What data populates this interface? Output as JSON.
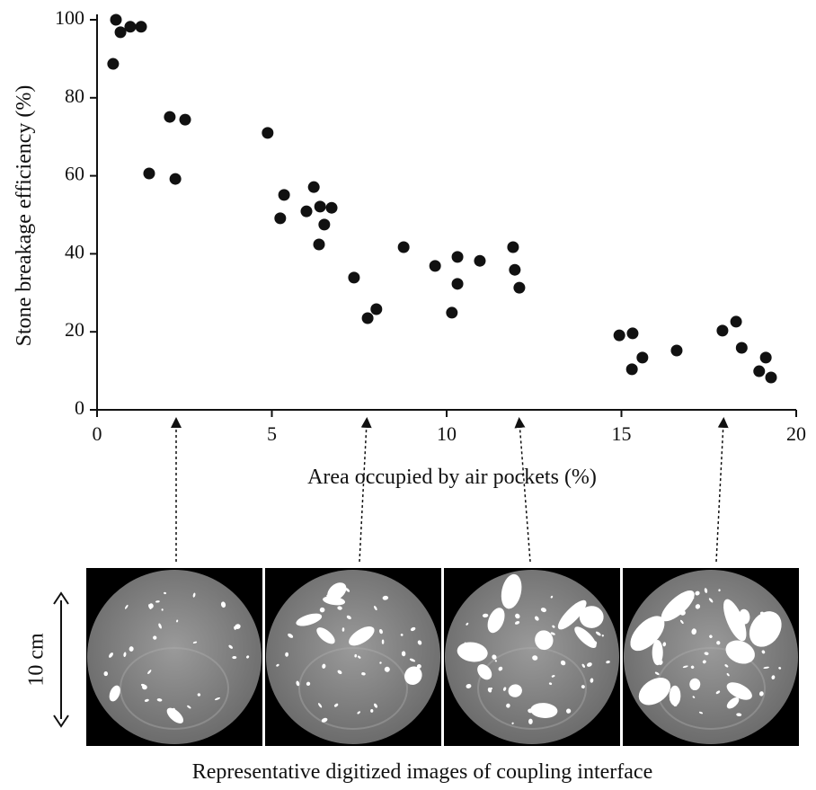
{
  "chart_data": {
    "type": "scatter",
    "xlabel": "Area occupied by air pockets (%)",
    "ylabel": "Stone breakage efficiency (%)",
    "x": [
      0.46,
      0.54,
      0.67,
      0.95,
      1.26,
      1.49,
      2.08,
      2.52,
      2.24,
      4.88,
      5.35,
      5.24,
      5.99,
      6.2,
      6.38,
      6.71,
      6.5,
      6.35,
      7.35,
      7.74,
      7.99,
      8.77,
      9.67,
      10.31,
      10.15,
      10.31,
      10.95,
      11.9,
      11.95,
      12.08,
      14.94,
      15.32,
      15.3,
      15.6,
      16.58,
      17.89,
      18.28,
      18.44,
      18.94,
      19.13,
      19.28
    ],
    "values": [
      88.7,
      100,
      96.8,
      98.2,
      98.2,
      60.6,
      75.1,
      74.4,
      59.2,
      71.0,
      55.1,
      49.1,
      50.9,
      57.1,
      52.1,
      51.8,
      47.5,
      42.4,
      33.9,
      23.5,
      25.8,
      41.7,
      36.9,
      39.2,
      24.9,
      32.3,
      38.2,
      41.7,
      35.9,
      31.3,
      19.1,
      19.6,
      10.4,
      13.4,
      15.2,
      20.3,
      22.6,
      15.9,
      9.9,
      13.4,
      8.3
    ],
    "color": "#111111",
    "xlim": [
      0,
      20
    ],
    "xticks": [
      0,
      5,
      10,
      15,
      20
    ],
    "ylim": [
      0,
      100
    ],
    "yticks": [
      0,
      20,
      40,
      60,
      80,
      100
    ],
    "grid": false,
    "scale_label": "10 cm",
    "caption": "Representative digitized images of coupling interface"
  }
}
